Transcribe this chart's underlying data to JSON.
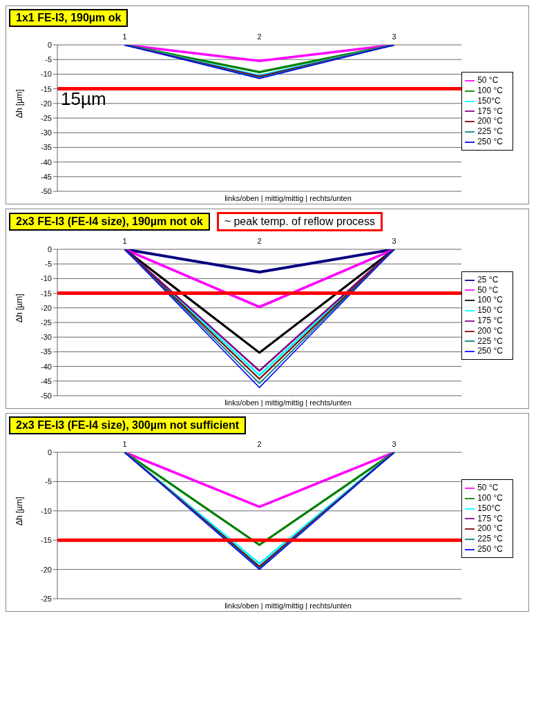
{
  "chart_data": [
    {
      "type": "line",
      "categories": [
        "1",
        "2",
        "3"
      ],
      "xlabel": "links/oben | mittig/mittig | rechts/unten",
      "ylabel": "Δh [µm]",
      "ylim": [
        -50,
        0
      ],
      "yticks": [
        0,
        -5,
        -10,
        -15,
        -20,
        -25,
        -30,
        -35,
        -40,
        -45,
        -50
      ],
      "grid": "y",
      "legend": "right",
      "marker": "none",
      "line_style": "solid",
      "annotations": [
        "1x1 FE-I3, 190µm ok"
      ],
      "ref_lines": [
        {
          "axis": "y",
          "value": -15,
          "label": "15µm",
          "color": "#ff0000"
        }
      ],
      "series": [
        {
          "name": "50 °C",
          "color": "#ff00ff",
          "values": [
            0,
            -5.5,
            0
          ]
        },
        {
          "name": "100 °C",
          "color": "#008000",
          "values": [
            0,
            -9.3,
            0
          ]
        },
        {
          "name": "150°C",
          "color": "#00ffff",
          "values": [
            0,
            -10.5,
            0
          ]
        },
        {
          "name": "175 °C",
          "color": "#800080",
          "values": [
            0,
            -10.8,
            0
          ]
        },
        {
          "name": "200 °C",
          "color": "#800000",
          "values": [
            0,
            -11,
            0
          ]
        },
        {
          "name": "225 °C",
          "color": "#008080",
          "values": [
            0,
            -11.2,
            0
          ]
        },
        {
          "name": "250 °C",
          "color": "#0000ff",
          "values": [
            0,
            -11.5,
            0
          ]
        }
      ]
    },
    {
      "type": "line",
      "categories": [
        "1",
        "2",
        "3"
      ],
      "xlabel": "links/oben | mittig/mittig | rechts/unten",
      "ylabel": "Δh [µm]",
      "ylim": [
        -50,
        0
      ],
      "yticks": [
        0,
        -5,
        -10,
        -15,
        -20,
        -25,
        -30,
        -35,
        -40,
        -45,
        -50
      ],
      "grid": "y",
      "legend": "right",
      "marker": "none",
      "line_style": "solid",
      "annotations": [
        "2x3 FE-I3 (FE-I4 size), 190µm not ok",
        "~ peak temp. of reflow process"
      ],
      "ref_lines": [
        {
          "axis": "y",
          "value": -15,
          "color": "#ff0000"
        }
      ],
      "series": [
        {
          "name": "25 °C",
          "color": "#000080",
          "values": [
            0,
            -7.8,
            0
          ]
        },
        {
          "name": "50 °C",
          "color": "#ff00ff",
          "values": [
            0,
            -19.7,
            0
          ]
        },
        {
          "name": "100 °C",
          "color": "#000000",
          "values": [
            0,
            -35.3,
            0
          ]
        },
        {
          "name": "150 °C",
          "color": "#00ffff",
          "values": [
            0,
            -43,
            0
          ]
        },
        {
          "name": "175 °C",
          "color": "#800080",
          "values": [
            0,
            -41.5,
            0
          ]
        },
        {
          "name": "200 °C",
          "color": "#800000",
          "values": [
            0,
            -44.3,
            0
          ]
        },
        {
          "name": "225 °C",
          "color": "#008080",
          "values": [
            0,
            -45.8,
            0
          ]
        },
        {
          "name": "250 °C",
          "color": "#0000ff",
          "values": [
            0,
            -47.2,
            0
          ]
        }
      ]
    },
    {
      "type": "line",
      "categories": [
        "1",
        "2",
        "3"
      ],
      "xlabel": "links/oben | mittig/mittig | rechts/unten",
      "ylabel": "Δh [µm]",
      "ylim": [
        -25,
        0
      ],
      "yticks": [
        0,
        -5,
        -10,
        -15,
        -20,
        -25
      ],
      "grid": "y",
      "legend": "right",
      "marker": "none",
      "line_style": "solid",
      "annotations": [
        "2x3 FE-I3 (FE-I4 size), 300µm not sufficient"
      ],
      "ref_lines": [
        {
          "axis": "y",
          "value": -15,
          "color": "#ff0000"
        }
      ],
      "series": [
        {
          "name": "50 °C",
          "color": "#ff00ff",
          "values": [
            0,
            -9.3,
            0
          ]
        },
        {
          "name": "100 °C",
          "color": "#008000",
          "values": [
            0,
            -15.8,
            0
          ]
        },
        {
          "name": "150°C",
          "color": "#00ffff",
          "values": [
            0,
            -19,
            0
          ]
        },
        {
          "name": "175 °C",
          "color": "#800080",
          "values": [
            0,
            -19.5,
            0
          ]
        },
        {
          "name": "200 °C",
          "color": "#800000",
          "values": [
            0,
            -19.6,
            0
          ]
        },
        {
          "name": "225 °C",
          "color": "#008080",
          "values": [
            0,
            -19.8,
            0
          ]
        },
        {
          "name": "250 °C",
          "color": "#0000ff",
          "values": [
            0,
            -20,
            0
          ]
        }
      ]
    }
  ]
}
